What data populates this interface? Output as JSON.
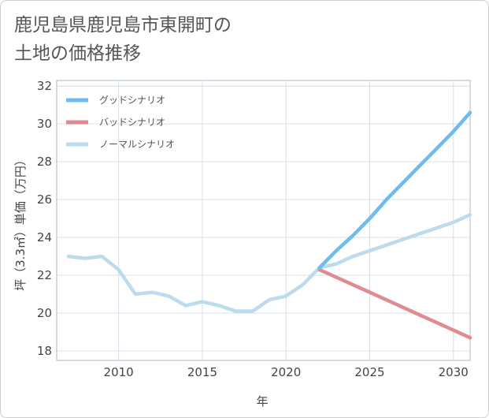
{
  "chart_data": {
    "type": "line",
    "title_lines": [
      "鹿児島県鹿児島市東開町の",
      "土地の価格推移"
    ],
    "xlabel": "年",
    "ylabel": "坪（3.3㎡）単価（万円）",
    "xlim": [
      2006.3,
      2031
    ],
    "ylim": [
      17.5,
      32.3
    ],
    "x_ticks": [
      2010,
      2015,
      2020,
      2025,
      2030
    ],
    "y_ticks": [
      18,
      20,
      22,
      24,
      26,
      28,
      30,
      32
    ],
    "legend_position": "top-left",
    "series": [
      {
        "name": "グッドシナリオ",
        "color": "#6cbcf0",
        "x": [
          2022,
          2023,
          2024,
          2025,
          2026,
          2027,
          2028,
          2029,
          2030,
          2031
        ],
        "values": [
          22.4,
          23.3,
          24.1,
          25.0,
          26.0,
          26.9,
          27.8,
          28.7,
          29.6,
          30.6
        ]
      },
      {
        "name": "バッドシナリオ",
        "color": "#e08a92",
        "x": [
          2022,
          2023,
          2024,
          2025,
          2026,
          2027,
          2028,
          2029,
          2030,
          2031
        ],
        "values": [
          22.3,
          21.9,
          21.5,
          21.1,
          20.7,
          20.3,
          19.9,
          19.5,
          19.1,
          18.7
        ]
      },
      {
        "name": "ノーマルシナリオ",
        "color": "#bcdcee",
        "x": [
          2007,
          2008,
          2009,
          2010,
          2011,
          2012,
          2013,
          2014,
          2015,
          2016,
          2017,
          2018,
          2019,
          2020,
          2021,
          2022,
          2023,
          2024,
          2025,
          2026,
          2027,
          2028,
          2029,
          2030,
          2031
        ],
        "values": [
          23.0,
          22.9,
          23.0,
          22.3,
          21.0,
          21.1,
          20.9,
          20.4,
          20.6,
          20.4,
          20.1,
          20.1,
          20.7,
          20.9,
          21.5,
          22.4,
          22.6,
          23.0,
          23.3,
          23.6,
          23.9,
          24.2,
          24.5,
          24.8,
          25.2
        ]
      }
    ]
  }
}
